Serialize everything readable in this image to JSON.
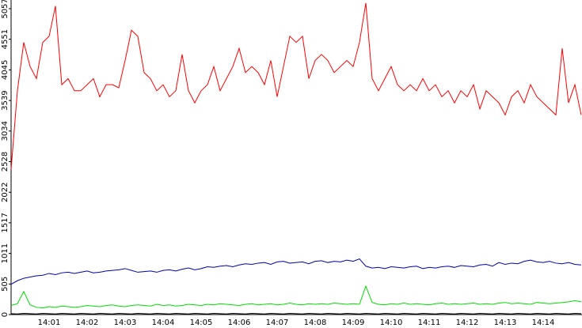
{
  "chart_data": {
    "type": "line",
    "categories": [
      null,
      null,
      null,
      null,
      null,
      null,
      "14:01",
      null,
      null,
      null,
      null,
      null,
      "14:02",
      null,
      null,
      null,
      null,
      null,
      "14:03",
      null,
      null,
      null,
      null,
      null,
      "14:04",
      null,
      null,
      null,
      null,
      null,
      "14:05",
      null,
      null,
      null,
      null,
      null,
      "14:06",
      null,
      null,
      null,
      null,
      null,
      "14:07",
      null,
      null,
      null,
      null,
      null,
      "14:08",
      null,
      null,
      null,
      null,
      null,
      "14:09",
      null,
      null,
      null,
      null,
      null,
      "14:10",
      null,
      null,
      null,
      null,
      null,
      "14:11",
      null,
      null,
      null,
      null,
      null,
      "14:12",
      null,
      null,
      null,
      null,
      null,
      "14:13",
      null,
      null,
      null,
      null,
      null,
      "14:14",
      null,
      null,
      null,
      null,
      null,
      null
    ],
    "ylim": [
      0,
      5200
    ],
    "yticks": [
      0,
      505,
      1011,
      1517,
      2022,
      2528,
      3034,
      3539,
      4045,
      4551,
      5057
    ],
    "series": [
      {
        "color": "#ff0000",
        "values": [
          2400,
          3700,
          4500,
          4100,
          3900,
          4500,
          4600,
          5100,
          3800,
          3900,
          3700,
          3700,
          3800,
          3900,
          3600,
          3800,
          3800,
          3750,
          4200,
          4700,
          4600,
          4000,
          3900,
          3700,
          3800,
          3600,
          3700,
          4300,
          3700,
          3500,
          3700,
          3800,
          4100,
          3700,
          3900,
          4100,
          4400,
          4000,
          4100,
          4000,
          3800,
          4200,
          3600,
          4100,
          4600,
          4500,
          4600,
          3900,
          4200,
          4300,
          4200,
          4000,
          4100,
          4200,
          4100,
          4500,
          5150,
          3900,
          3700,
          3900,
          4100,
          3800,
          3700,
          3800,
          3700,
          3900,
          3700,
          3800,
          3600,
          3700,
          3500,
          3700,
          3600,
          3800,
          3400,
          3700,
          3600,
          3500,
          3300,
          3600,
          3700,
          3500,
          3800,
          3600,
          3500,
          3400,
          3300,
          4400,
          3500,
          3800,
          3300
        ]
      },
      {
        "color": "#0000aa",
        "values": [
          500,
          560,
          600,
          620,
          640,
          650,
          680,
          660,
          690,
          700,
          680,
          700,
          720,
          690,
          700,
          720,
          730,
          740,
          760,
          730,
          700,
          710,
          720,
          700,
          730,
          740,
          720,
          750,
          770,
          740,
          760,
          790,
          780,
          800,
          810,
          790,
          820,
          840,
          830,
          850,
          860,
          830,
          870,
          880,
          850,
          860,
          870,
          840,
          880,
          890,
          860,
          880,
          870,
          900,
          880,
          920,
          800,
          770,
          780,
          760,
          790,
          780,
          770,
          790,
          800,
          760,
          780,
          770,
          790,
          800,
          780,
          810,
          800,
          790,
          820,
          830,
          800,
          860,
          830,
          850,
          840,
          880,
          900,
          870,
          860,
          880,
          850,
          840,
          860,
          830,
          820
        ]
      },
      {
        "color": "#00dd00",
        "values": [
          150,
          180,
          380,
          160,
          120,
          110,
          130,
          120,
          140,
          130,
          120,
          130,
          150,
          140,
          130,
          150,
          160,
          140,
          130,
          150,
          160,
          150,
          140,
          170,
          150,
          160,
          140,
          150,
          170,
          160,
          150,
          170,
          160,
          180,
          170,
          160,
          150,
          170,
          180,
          160,
          170,
          180,
          160,
          170,
          190,
          170,
          160,
          180,
          170,
          180,
          170,
          190,
          180,
          170,
          180,
          170,
          470,
          200,
          170,
          160,
          180,
          170,
          190,
          170,
          180,
          170,
          160,
          180,
          190,
          170,
          180,
          170,
          180,
          190,
          170,
          180,
          170,
          190,
          200,
          180,
          190,
          180,
          170,
          200,
          190,
          180,
          190,
          200,
          210,
          230,
          210
        ]
      },
      {
        "color": "#000000",
        "values": [
          15,
          10,
          20,
          15,
          10,
          20,
          15,
          10,
          20,
          15,
          10,
          20,
          15,
          10,
          20,
          15,
          10,
          20,
          15,
          10,
          20,
          15,
          10,
          20,
          15,
          10,
          20,
          15,
          10,
          20,
          15,
          10,
          20,
          15,
          10,
          20,
          15,
          10,
          20,
          15,
          10,
          20,
          15,
          10,
          20,
          15,
          10,
          20,
          15,
          10,
          20,
          15,
          10,
          20,
          15,
          10,
          20,
          15,
          10,
          20,
          15,
          10,
          20,
          15,
          10,
          20,
          15,
          10,
          20,
          15,
          10,
          20,
          15,
          10,
          20,
          15,
          10,
          20,
          15,
          10,
          20,
          15,
          10,
          20,
          15,
          10,
          20,
          15,
          10,
          20,
          15
        ]
      }
    ]
  }
}
